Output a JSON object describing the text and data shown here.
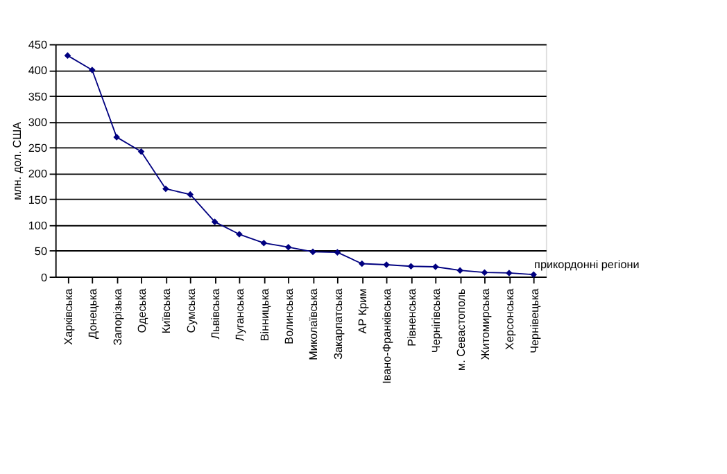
{
  "chart_data": {
    "type": "line",
    "xlabel": "прикордонні регіони",
    "ylabel": "млн. дол. США",
    "categories": [
      "Харківська",
      "Донецька",
      "Запорізька",
      "Одеська",
      "Київська",
      "Сумська",
      "Львівська",
      "Луганська",
      "Вінницька",
      "Волинська",
      "Миколаївська",
      "Закарпатська",
      "АР Крим",
      "Івано-Франківська",
      "Рівненська",
      "Чернігівська",
      "м. Севастополь",
      "Житомирська",
      "Херсонська",
      "Чернівецька"
    ],
    "series": [
      {
        "color": "#000080",
        "values": [
          428,
          400,
          270,
          242,
          170,
          159,
          106,
          82,
          65,
          57,
          48,
          47,
          25,
          23,
          20,
          19,
          12,
          8,
          7,
          4
        ]
      }
    ],
    "ylim": [
      0,
      450
    ],
    "yticks": [
      0,
      50,
      100,
      150,
      200,
      250,
      300,
      350,
      400,
      450
    ],
    "grid": "y",
    "marker": "diamond",
    "line_style": "solid"
  }
}
